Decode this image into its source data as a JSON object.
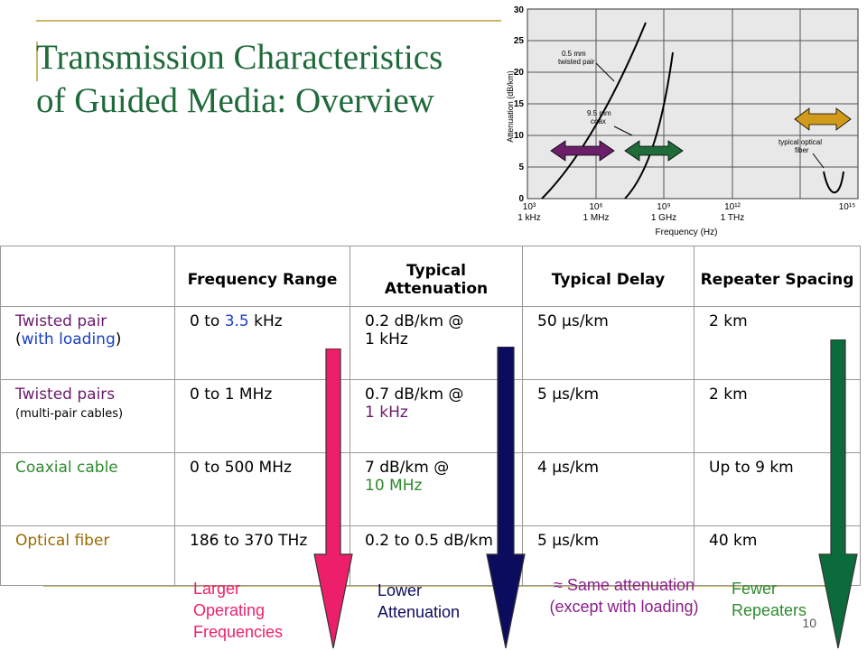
{
  "slide": {
    "title_line1": "Transmission Characteristics",
    "title_line2": "of Guided Media: Overview",
    "page_number": "10"
  },
  "graph": {
    "y_axis_label": "Attenuation (dB/km)",
    "x_axis_label": "Frequency (Hz)",
    "y_ticks": [
      "0",
      "5",
      "10",
      "15",
      "20",
      "25",
      "30"
    ],
    "x_ticks_top": [
      "10³",
      "10⁶",
      "10⁹",
      "10¹²",
      "10¹⁵"
    ],
    "x_ticks_bottom": [
      "1 kHz",
      "1 MHz",
      "1 GHz",
      "1 THz"
    ],
    "curve_labels": {
      "twisted_pair": "0.5 mm twisted pair",
      "coax": "9.5 mm coax",
      "fiber": "typical optical fiber"
    },
    "arrow_colors": {
      "purple": "#6b1f6b",
      "green": "#1f6b3a",
      "gold": "#d19a1a"
    }
  },
  "table": {
    "headers": [
      "",
      "Frequency Range",
      "Typical Attenuation",
      "Typical Delay",
      "Repeater Spacing"
    ],
    "rows": [
      {
        "medium": "Twisted pair",
        "medium_sub_open": "(",
        "medium_sub": "with loading",
        "medium_sub_close": ")",
        "freq_a": "0 to ",
        "freq_b": "3.5",
        "freq_c": " kHz",
        "atten_a": "0.2 dB/km @",
        "atten_b": "1 kHz",
        "delay": "50 μs/km",
        "spacing": "2 km"
      },
      {
        "medium": "Twisted pairs",
        "medium_sub": "(multi-pair cables)",
        "freq": "0 to 1 MHz",
        "atten_a": "0.7 dB/km @",
        "atten_b": "1 kHz",
        "delay": "5 μs/km",
        "spacing": "2 km"
      },
      {
        "medium": "Coaxial cable",
        "freq": "0 to 500 MHz",
        "atten_a": "7 dB/km @",
        "atten_b": "10 MHz",
        "delay": "4 μs/km",
        "spacing": "Up to 9 km"
      },
      {
        "medium": "Optical fiber",
        "freq": "186 to 370 THz",
        "atten": "0.2 to 0.5 dB/km",
        "delay": "5 μs/km",
        "spacing": "40 km"
      }
    ]
  },
  "notes": {
    "pink": "Larger Operating Frequencies",
    "navy": "Lower Attenuation",
    "purple_line1": "≈ Same attenuation",
    "purple_line2": "(except with loading)",
    "green": "Fewer Repeaters"
  },
  "colors": {
    "title": "#1f6a3a",
    "pink_arrow": "#ee1f6a",
    "navy_arrow": "#0c0c5e",
    "green_arrow": "#0c6b3a"
  }
}
